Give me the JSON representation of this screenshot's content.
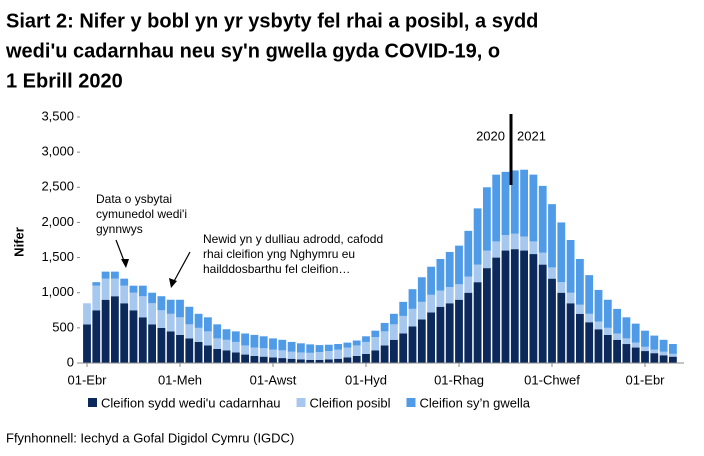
{
  "chart_data": {
    "type": "stacked_bar",
    "title": [
      "Siart 2: Nifer y bobl yn yr ysbyty fel rhai a posibl, a sydd",
      "wedi'u cadarnhau neu sy'n gwella gyda COVID-19, o",
      "1 Ebrill 2020"
    ],
    "y_label": "Nifer",
    "source": "Ffynhonnell: Iechyd a Gofal Digidol Cymru (IGDC)",
    "year_labels": [
      "2020",
      "2021"
    ],
    "annotations": [
      {
        "lines": [
          "Data o ysbytai",
          "cymunedol wedi'i",
          "gynnwys"
        ]
      },
      {
        "lines": [
          "Newid yn y dulliau adrodd, cafodd",
          "rhai cleifion yng Nghymru eu",
          "hailddosbarthu fel cleifion…"
        ]
      }
    ],
    "categories": [
      "01-Ebr",
      null,
      null,
      null,
      null,
      null,
      null,
      null,
      null,
      null,
      "01-Meh",
      null,
      null,
      null,
      null,
      null,
      null,
      null,
      null,
      null,
      "01-Awst",
      null,
      null,
      null,
      null,
      null,
      null,
      null,
      null,
      null,
      "01-Hyd",
      null,
      null,
      null,
      null,
      null,
      null,
      null,
      null,
      null,
      "01-Rhag",
      null,
      null,
      null,
      null,
      null,
      null,
      null,
      null,
      null,
      "01-Chwef",
      null,
      null,
      null,
      null,
      null,
      null,
      null,
      null,
      null,
      "01-Ebr",
      null,
      null,
      null
    ],
    "series": [
      {
        "name": "Cleifion sydd wedi'u cadarnhau",
        "color": "#0b2a5b",
        "values": [
          550,
          750,
          900,
          950,
          850,
          750,
          650,
          550,
          500,
          450,
          400,
          350,
          300,
          250,
          200,
          180,
          150,
          120,
          100,
          90,
          80,
          70,
          60,
          50,
          45,
          45,
          50,
          60,
          80,
          100,
          130,
          180,
          250,
          330,
          420,
          520,
          620,
          720,
          800,
          850,
          900,
          1000,
          1150,
          1350,
          1500,
          1600,
          1620,
          1600,
          1550,
          1400,
          1200,
          1000,
          850,
          700,
          580,
          480,
          400,
          330,
          270,
          220,
          170,
          140,
          110,
          90
        ]
      },
      {
        "name": "Cleifion posibl",
        "color": "#a6c8ef",
        "values": [
          300,
          350,
          300,
          250,
          250,
          250,
          300,
          300,
          250,
          250,
          250,
          200,
          200,
          200,
          150,
          150,
          150,
          130,
          120,
          120,
          110,
          110,
          100,
          100,
          100,
          110,
          120,
          130,
          140,
          150,
          170,
          190,
          200,
          220,
          250,
          250,
          250,
          250,
          230,
          230,
          220,
          230,
          250,
          250,
          230,
          220,
          220,
          200,
          180,
          170,
          160,
          150,
          150,
          130,
          120,
          110,
          100,
          90,
          80,
          70,
          60,
          50,
          50,
          40
        ]
      },
      {
        "name": "Cleifion sy’n gwella",
        "color": "#4f9be8",
        "values": [
          0,
          50,
          100,
          100,
          100,
          100,
          150,
          150,
          200,
          200,
          250,
          250,
          200,
          200,
          200,
          150,
          150,
          170,
          180,
          170,
          160,
          150,
          140,
          130,
          120,
          100,
          90,
          80,
          70,
          70,
          80,
          90,
          120,
          150,
          200,
          280,
          350,
          400,
          450,
          500,
          550,
          650,
          800,
          900,
          950,
          900,
          900,
          950,
          950,
          950,
          900,
          850,
          750,
          650,
          550,
          450,
          400,
          350,
          300,
          270,
          230,
          200,
          170,
          140
        ]
      }
    ],
    "ylim": [
      0,
      3500
    ],
    "yticks": [
      0,
      {
        "value": 500,
        "label": "500"
      },
      {
        "value": 1000,
        "label": "1,000"
      },
      {
        "value": 1500,
        "label": "1,500"
      },
      {
        "value": 2000,
        "label": "2,000"
      },
      {
        "value": 2500,
        "label": "2,500"
      },
      {
        "value": 3000,
        "label": "3,000"
      },
      {
        "value": 3500,
        "label": "3,500"
      }
    ],
    "grid": false
  }
}
